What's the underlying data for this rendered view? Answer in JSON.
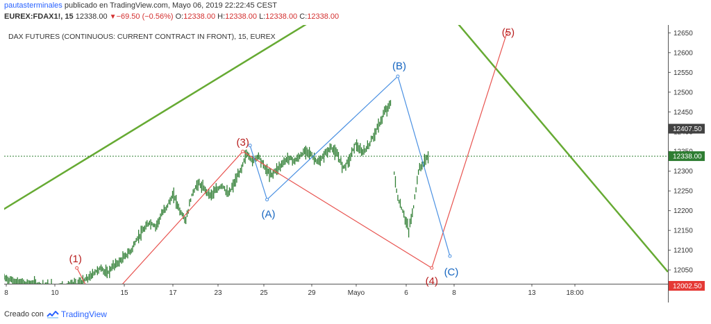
{
  "header": {
    "user": "pautasterminales",
    "published_text": "publicado en TradingView.com, Mayo 06, 2019 22:22:45 CEST",
    "symbol": "EUREX:FDAX1!, 15",
    "last": "12338.00",
    "change": "−69.50 (−0.56%)",
    "o_label": "O:",
    "o_value": "12338.00",
    "h_label": "H:",
    "h_value": "12338.00",
    "l_label": "L:",
    "l_value": "12338.00",
    "c_label": "C:",
    "c_value": "12338.00"
  },
  "colors": {
    "candle": "#2e7d32",
    "trendline": "#66aa33",
    "impulse": "#e8534f",
    "corrective": "#4a90e2",
    "impulse_label": "#b71c1c",
    "corrective_label": "#1565c0",
    "axis_text": "#333333",
    "price_line": "#2e7d32"
  },
  "footer": {
    "created_with": "Creado con",
    "brand": "TradingView"
  },
  "chart_data": {
    "type": "line",
    "title": "DAX FUTURES (CONTINUOUS: CURRENT CONTRACT IN FRONT), 15, EUREX",
    "x_axis_labels": [
      "8",
      "10",
      "15",
      "17",
      "23",
      "25",
      "29",
      "Mayo",
      "6",
      "8",
      "13",
      "18:00"
    ],
    "y_ticks": [
      12050,
      12100,
      12150,
      12200,
      12250,
      12300,
      12350,
      12400,
      12450,
      12500,
      12550,
      12600,
      12650
    ],
    "ylim": [
      12015,
      12670
    ],
    "price_badges": [
      {
        "label": "12407.50",
        "value": 12407.5,
        "style": "dark"
      },
      {
        "label": "12338.00",
        "value": 12338.0,
        "style": "green"
      },
      {
        "label": "12002.50",
        "value": 12002.5,
        "style": "red"
      }
    ],
    "current_price": 12338.0,
    "price_series": [
      {
        "i": 0,
        "v": 12030
      },
      {
        "i": 10,
        "v": 12020
      },
      {
        "i": 20,
        "v": 12015
      },
      {
        "i": 35,
        "v": 12010
      },
      {
        "i": 50,
        "v": 12008
      },
      {
        "i": 60,
        "v": 12012
      },
      {
        "i": 70,
        "v": 12030
      },
      {
        "i": 75,
        "v": 12045
      },
      {
        "i": 80,
        "v": 12055
      },
      {
        "i": 85,
        "v": 12040
      },
      {
        "i": 90,
        "v": 12060
      },
      {
        "i": 95,
        "v": 12070
      },
      {
        "i": 100,
        "v": 12085
      },
      {
        "i": 105,
        "v": 12100
      },
      {
        "i": 110,
        "v": 12130
      },
      {
        "i": 115,
        "v": 12150
      },
      {
        "i": 120,
        "v": 12170
      },
      {
        "i": 125,
        "v": 12160
      },
      {
        "i": 130,
        "v": 12190
      },
      {
        "i": 135,
        "v": 12215
      },
      {
        "i": 140,
        "v": 12240
      },
      {
        "i": 145,
        "v": 12200
      },
      {
        "i": 150,
        "v": 12175
      },
      {
        "i": 155,
        "v": 12240
      },
      {
        "i": 160,
        "v": 12270
      },
      {
        "i": 165,
        "v": 12255
      },
      {
        "i": 170,
        "v": 12240
      },
      {
        "i": 175,
        "v": 12250
      },
      {
        "i": 180,
        "v": 12265
      },
      {
        "i": 185,
        "v": 12240
      },
      {
        "i": 190,
        "v": 12270
      },
      {
        "i": 195,
        "v": 12300
      },
      {
        "i": 200,
        "v": 12345
      },
      {
        "i": 205,
        "v": 12325
      },
      {
        "i": 210,
        "v": 12340
      },
      {
        "i": 215,
        "v": 12310
      },
      {
        "i": 220,
        "v": 12290
      },
      {
        "i": 225,
        "v": 12305
      },
      {
        "i": 230,
        "v": 12320
      },
      {
        "i": 235,
        "v": 12335
      },
      {
        "i": 240,
        "v": 12325
      },
      {
        "i": 245,
        "v": 12340
      },
      {
        "i": 250,
        "v": 12355
      },
      {
        "i": 255,
        "v": 12335
      },
      {
        "i": 260,
        "v": 12320
      },
      {
        "i": 265,
        "v": 12345
      },
      {
        "i": 270,
        "v": 12360
      },
      {
        "i": 275,
        "v": 12340
      },
      {
        "i": 280,
        "v": 12310
      },
      {
        "i": 285,
        "v": 12330
      },
      {
        "i": 290,
        "v": 12370
      },
      {
        "i": 295,
        "v": 12345
      },
      {
        "i": 300,
        "v": 12360
      },
      {
        "i": 305,
        "v": 12390
      },
      {
        "i": 310,
        "v": 12420
      },
      {
        "i": 315,
        "v": 12455
      },
      {
        "i": 319,
        "v": 12470
      },
      {
        "i": 320,
        "v": 12340
      },
      {
        "i": 325,
        "v": 12230
      },
      {
        "i": 330,
        "v": 12190
      },
      {
        "i": 334,
        "v": 12150
      },
      {
        "i": 338,
        "v": 12210
      },
      {
        "i": 342,
        "v": 12300
      },
      {
        "i": 346,
        "v": 12320
      },
      {
        "i": 350,
        "v": 12338
      }
    ],
    "impulse_wave": [
      {
        "label": "(1)",
        "i": 60,
        "v": 12055
      },
      {
        "label": "",
        "i": 69,
        "v": 12002
      },
      {
        "label": "",
        "i": 95,
        "v": 12005
      },
      {
        "label": "(3)",
        "i": 197,
        "v": 12350
      },
      {
        "label": "(4)",
        "i": 353,
        "v": 12055
      },
      {
        "label": "(5)",
        "i": 415,
        "v": 12650
      }
    ],
    "corrective_wave": [
      {
        "label": "",
        "i": 203,
        "v": 12365
      },
      {
        "label": "(A)",
        "i": 217,
        "v": 12228
      },
      {
        "label": "(B)",
        "i": 325,
        "v": 12540
      },
      {
        "label": "(C)",
        "i": 368,
        "v": 12085
      }
    ],
    "trendlines": [
      {
        "name": "support-trendline",
        "from": {
          "i": -5,
          "v": 12195
        },
        "to": {
          "i": 275,
          "v": 12720
        }
      },
      {
        "name": "resistance-trendline",
        "from": {
          "i": 370,
          "v": 12690
        },
        "to": {
          "i": 548,
          "v": 12045
        }
      }
    ]
  }
}
